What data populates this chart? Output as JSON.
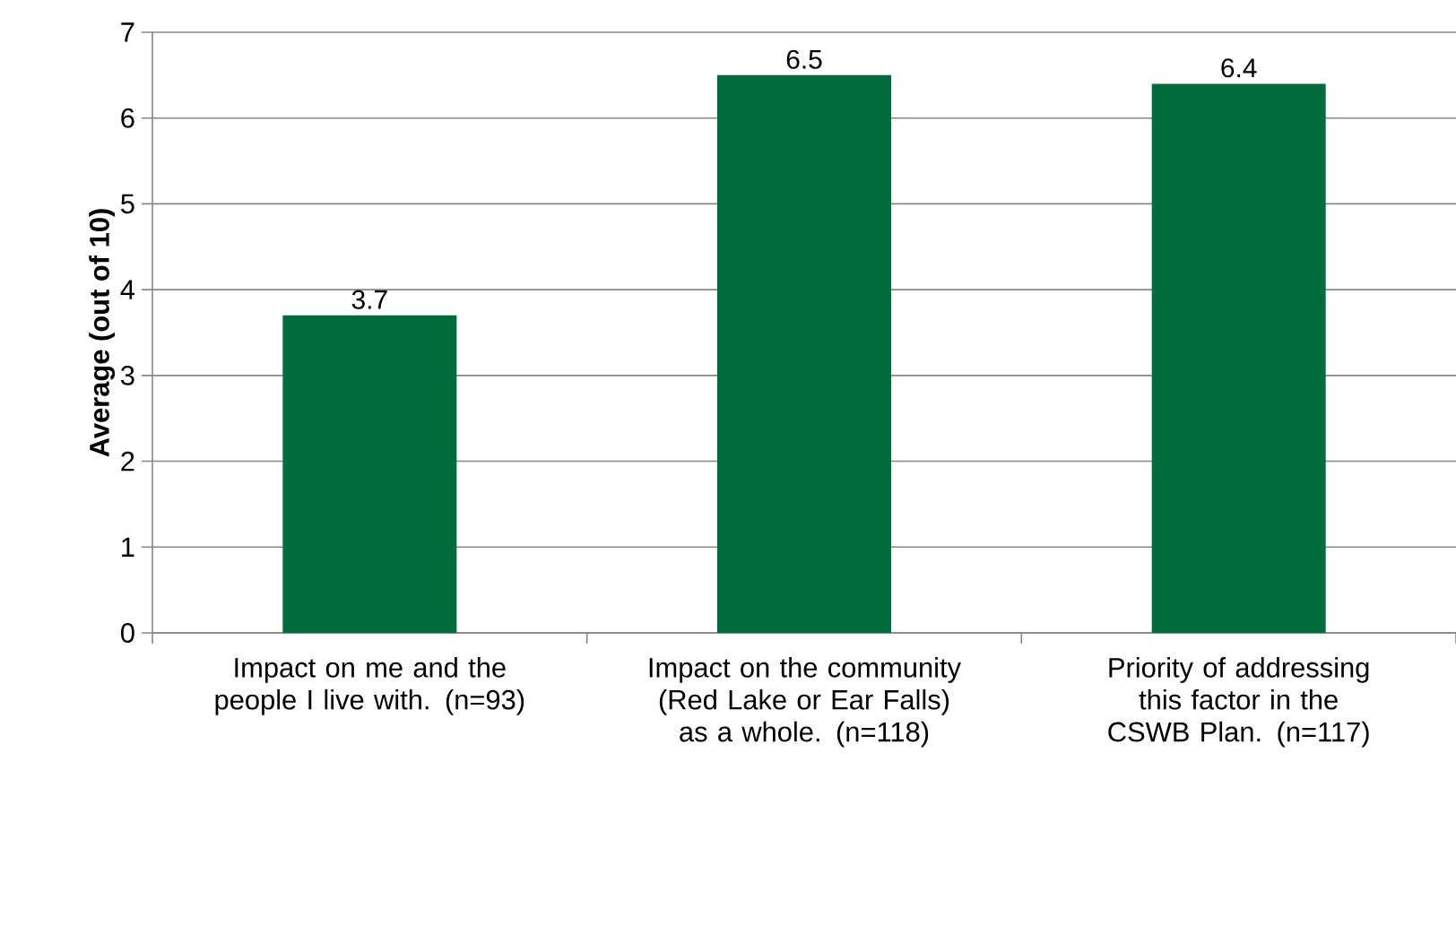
{
  "chart_data": {
    "type": "bar",
    "ylabel": "Average (out of 10)",
    "categories": [
      "Impact on me and the people I live with. (n=93)",
      "Impact on the community (Red Lake or Ear Falls) as a whole. (n=118)",
      "Priority of addressing this factor in the CSWB Plan. (n=117)"
    ],
    "values": [
      3.7,
      6.5,
      6.4
    ],
    "color": "#006b3c",
    "ylim": [
      0,
      7
    ],
    "yticks": [
      0,
      1,
      2,
      3,
      4,
      5,
      6,
      7
    ],
    "grid": "y",
    "data_labels": true
  }
}
